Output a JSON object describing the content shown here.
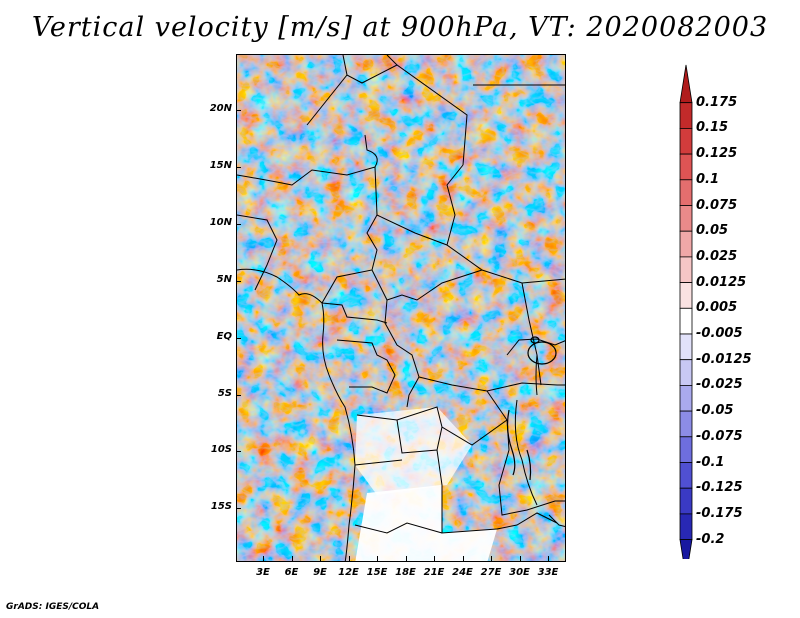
{
  "title": "Vertical velocity [m/s] at 900hPa, VT: 2020082003",
  "footer": "GrADS: IGES/COLA",
  "map": {
    "lat_labels": [
      "20N",
      "15N",
      "10N",
      "5N",
      "EQ",
      "5S",
      "10S",
      "15S"
    ],
    "lon_labels": [
      "3E",
      "6E",
      "9E",
      "12E",
      "15E",
      "18E",
      "21E",
      "24E",
      "27E",
      "30E",
      "33E"
    ]
  },
  "colorbar": {
    "labels": [
      "0.175",
      "0.15",
      "0.125",
      "0.1",
      "0.075",
      "0.05",
      "0.025",
      "0.0125",
      "0.005",
      "-0.005",
      "-0.0125",
      "-0.025",
      "-0.05",
      "-0.075",
      "-0.1",
      "-0.125",
      "-0.175",
      "-0.2"
    ],
    "colors": [
      "#b01c1c",
      "#c22a2a",
      "#d23c3c",
      "#de5454",
      "#e46e6e",
      "#ea8a8a",
      "#f0a8a8",
      "#f6c6c6",
      "#fae2e2",
      "#ffffff",
      "#e2e2fa",
      "#c8c8f4",
      "#aaaaee",
      "#8c8ce6",
      "#6e6ede",
      "#5050d2",
      "#3a3ac4",
      "#2828b4",
      "#1818a0"
    ]
  }
}
